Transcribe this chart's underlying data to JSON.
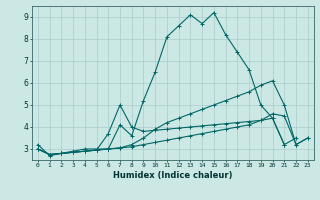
{
  "title": "",
  "xlabel": "Humidex (Indice chaleur)",
  "ylabel": "",
  "bg_color": "#cce8e4",
  "line_color": "#006666",
  "grid_color": "#aacccc",
  "xlim": [
    -0.5,
    23.5
  ],
  "ylim": [
    2.5,
    9.5
  ],
  "xticks": [
    0,
    1,
    2,
    3,
    4,
    5,
    6,
    7,
    8,
    9,
    10,
    11,
    12,
    13,
    14,
    15,
    16,
    17,
    18,
    19,
    20,
    21,
    22,
    23
  ],
  "yticks": [
    3,
    4,
    5,
    6,
    7,
    8,
    9
  ],
  "series": [
    {
      "x": [
        0,
        1,
        2,
        3,
        4,
        5,
        6,
        7,
        8,
        9,
        10,
        11,
        12,
        13,
        14,
        15,
        16,
        17,
        18,
        19,
        20,
        21
      ],
      "y": [
        3.2,
        2.7,
        2.8,
        2.9,
        3.0,
        3.0,
        3.0,
        4.1,
        3.6,
        5.2,
        6.5,
        8.1,
        8.6,
        9.1,
        8.7,
        9.2,
        8.2,
        7.4,
        6.6,
        5.0,
        4.4,
        3.2
      ]
    },
    {
      "x": [
        0,
        1,
        2,
        3,
        4,
        5,
        6,
        7,
        8,
        9,
        10,
        11,
        12,
        13,
        14,
        15,
        16,
        17,
        18,
        19,
        20,
        21,
        22,
        23
      ],
      "y": [
        3.0,
        2.75,
        2.8,
        2.85,
        2.9,
        2.95,
        3.0,
        3.05,
        3.2,
        3.5,
        3.9,
        4.2,
        4.4,
        4.6,
        4.8,
        5.0,
        5.2,
        5.4,
        5.6,
        5.9,
        6.1,
        5.0,
        3.2,
        3.5
      ]
    },
    {
      "x": [
        0,
        1,
        2,
        3,
        4,
        5,
        6,
        7,
        8,
        9,
        10,
        11,
        12,
        13,
        14,
        15,
        16,
        17,
        18,
        19,
        20,
        21,
        22,
        23
      ],
      "y": [
        3.0,
        2.75,
        2.8,
        2.85,
        2.9,
        2.95,
        3.0,
        3.05,
        3.1,
        3.2,
        3.3,
        3.4,
        3.5,
        3.6,
        3.7,
        3.8,
        3.9,
        4.0,
        4.1,
        4.3,
        4.6,
        4.5,
        3.2,
        3.5
      ]
    },
    {
      "x": [
        0,
        1,
        2,
        3,
        4,
        5,
        6,
        7,
        8,
        9,
        10,
        11,
        12,
        13,
        14,
        15,
        16,
        17,
        18,
        19,
        20,
        21,
        22,
        23
      ],
      "y": [
        3.0,
        2.75,
        2.8,
        2.85,
        2.9,
        2.95,
        3.7,
        5.0,
        4.0,
        3.8,
        3.85,
        3.9,
        3.95,
        4.0,
        4.05,
        4.1,
        4.15,
        4.2,
        4.25,
        4.3,
        4.4,
        3.2,
        3.5,
        null
      ]
    }
  ]
}
